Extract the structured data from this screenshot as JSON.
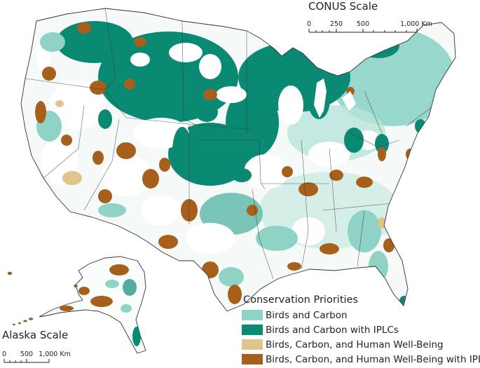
{
  "conus_scale": {
    "title": "CONUS Scale",
    "ticks": [
      "0",
      "250",
      "500",
      "1,000 Km"
    ]
  },
  "alaska_scale": {
    "title": "Alaska Scale",
    "ticks": [
      "0",
      "500",
      "1,000 Km"
    ]
  },
  "legend": {
    "title": "Conservation Priorities",
    "items": [
      {
        "label": "Birds and Carbon",
        "color": "#8ed3c6"
      },
      {
        "label": "Birds and Carbon with IPLCs",
        "color": "#0a8a72"
      },
      {
        "label": "Birds, Carbon, and Human Well-Being",
        "color": "#e0c58a"
      },
      {
        "label": "Birds, Carbon, and Human Well-Being with IPLCs",
        "color": "#a7601b"
      }
    ]
  },
  "colors": {
    "light_teal": "#8ed3c6",
    "dark_teal": "#0a8a72",
    "tan": "#e0c58a",
    "brown": "#a7601b",
    "boundary": "#333333"
  }
}
